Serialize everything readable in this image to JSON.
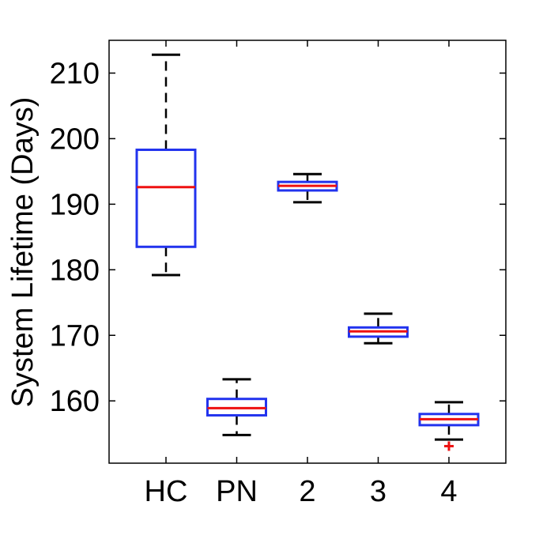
{
  "chart_data": {
    "type": "box",
    "ylabel": "System Lifetime (Days)",
    "xlabel": "",
    "title": "",
    "categories": [
      "HC",
      "PN",
      "2",
      "3",
      "4"
    ],
    "ylim": [
      150.5,
      215
    ],
    "yticks": [
      160,
      170,
      180,
      190,
      200,
      210
    ],
    "boxes": [
      {
        "category": "HC",
        "whisker_low": 179.2,
        "q1": 183.5,
        "median": 192.6,
        "q3": 198.3,
        "whisker_high": 212.8,
        "outliers": []
      },
      {
        "category": "PN",
        "whisker_low": 154.8,
        "q1": 157.8,
        "median": 158.9,
        "q3": 160.3,
        "whisker_high": 163.3,
        "outliers": []
      },
      {
        "category": "2",
        "whisker_low": 190.3,
        "q1": 192.1,
        "median": 192.8,
        "q3": 193.4,
        "whisker_high": 194.6,
        "outliers": []
      },
      {
        "category": "3",
        "whisker_low": 168.8,
        "q1": 169.8,
        "median": 170.6,
        "q3": 171.2,
        "whisker_high": 173.3,
        "outliers": []
      },
      {
        "category": "4",
        "whisker_low": 154.1,
        "q1": 156.3,
        "median": 157.2,
        "q3": 158.0,
        "whisker_high": 159.8,
        "outliers": [
          153.1
        ]
      }
    ],
    "colors": {
      "box": "#2233ee",
      "median": "#ee1111",
      "whisker": "#000000",
      "outlier": "#ee1111"
    },
    "grid": false,
    "legend": "none"
  }
}
